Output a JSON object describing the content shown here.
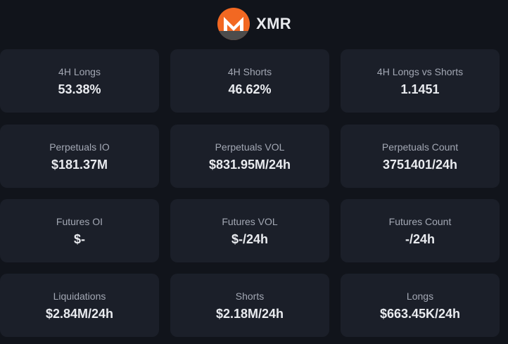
{
  "header": {
    "logo_icon": "monero-logo-icon",
    "coin": "XMR",
    "accent_color": "#f26822"
  },
  "cards": [
    {
      "label": "4H Longs",
      "value": "53.38%"
    },
    {
      "label": "4H Shorts",
      "value": "46.62%"
    },
    {
      "label": "4H Longs vs Shorts",
      "value": "1.1451"
    },
    {
      "label": "Perpetuals IO",
      "value": "$181.37M"
    },
    {
      "label": "Perpetuals VOL",
      "value": "$831.95M/24h"
    },
    {
      "label": "Perpetuals Count",
      "value": "3751401/24h"
    },
    {
      "label": "Futures OI",
      "value": "$-"
    },
    {
      "label": "Futures VOL",
      "value": "$-/24h"
    },
    {
      "label": "Futures Count",
      "value": "-/24h"
    },
    {
      "label": "Liquidations",
      "value": "$2.84M/24h"
    },
    {
      "label": "Shorts",
      "value": "$2.18M/24h"
    },
    {
      "label": "Longs",
      "value": "$663.45K/24h"
    }
  ]
}
